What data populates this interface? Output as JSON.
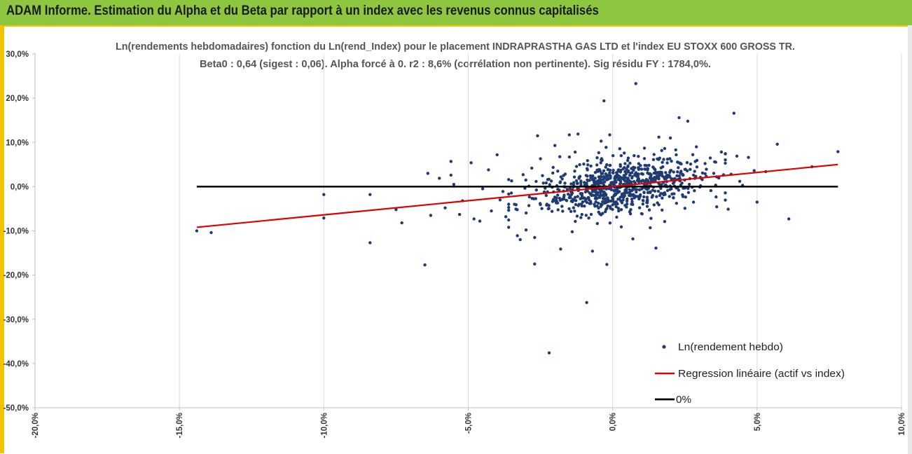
{
  "header": {
    "title": "ADAM Informe. Estimation du Alpha et du Beta par rapport à un index avec les revenus connus capitalisés"
  },
  "colors": {
    "banner": "#8dc63f",
    "frame": "#f2c300",
    "points": "#1f3b73",
    "regression": "#e00000",
    "zero_line": "#000000"
  },
  "chart_data": {
    "type": "scatter",
    "title_line1": "Ln(rendements hebdomadaires) fonction du Ln(rend_Index) pour le placement INDRAPRASTHA GAS LTD et l'index EU STOXX 600 GROSS TR.",
    "title_line2": "Beta0 : 0,64  (sigest : 0,06).  Alpha forcé à 0. r2 : 8,6% (corrélation non pertinente). Sig résidu FY : 1784,0%.",
    "x_ticks": [
      "-20,0%",
      "-15,0%",
      "-10,0%",
      "-5,0%",
      "0,0%",
      "5,0%",
      "10,0%"
    ],
    "x_tick_values": [
      -20,
      -15,
      -10,
      -5,
      0,
      5,
      10
    ],
    "y_ticks": [
      "30,0%",
      "20,0%",
      "10,0%",
      "0,0%",
      "-10,0%",
      "-20,0%",
      "-30,0%",
      "-40,0%",
      "-50,0%"
    ],
    "y_tick_values": [
      30,
      20,
      10,
      0,
      -10,
      -20,
      -30,
      -40,
      -50
    ],
    "xlim": [
      -20,
      10
    ],
    "ylim": [
      -50,
      30
    ],
    "grid": "vertical",
    "legend_position": "bottom-right",
    "series": [
      {
        "name": "Ln(rendement hebdo)",
        "kind": "points",
        "points": [
          [
            -14.4,
            -10.0
          ],
          [
            -13.9,
            -10.4
          ],
          [
            -10.0,
            -7.1
          ],
          [
            -10.0,
            -1.8
          ],
          [
            -8.4,
            -12.7
          ],
          [
            -8.4,
            -1.8
          ],
          [
            -7.5,
            -5.2
          ],
          [
            -7.3,
            -8.2
          ],
          [
            -6.5,
            -17.7
          ],
          [
            -6.4,
            3.0
          ],
          [
            -6.3,
            -6.5
          ],
          [
            -6.0,
            1.9
          ],
          [
            -5.8,
            -4.8
          ],
          [
            -5.6,
            5.7
          ],
          [
            -5.6,
            2.6
          ],
          [
            -5.5,
            0.5
          ],
          [
            -5.3,
            -6.3
          ],
          [
            -5.2,
            -3.2
          ],
          [
            -4.9,
            5.4
          ],
          [
            -4.8,
            -7.3
          ],
          [
            -4.6,
            -7.8
          ],
          [
            -4.5,
            -0.5
          ],
          [
            -4.3,
            3.8
          ],
          [
            -4.2,
            -5.5
          ],
          [
            -4.0,
            7.2
          ],
          [
            -3.9,
            -3.0
          ],
          [
            -3.8,
            -1.1
          ],
          [
            -3.7,
            -6.8
          ],
          [
            -3.6,
            -9.2
          ],
          [
            -3.5,
            1.3
          ],
          [
            -3.4,
            -4.0
          ],
          [
            -3.3,
            -11.1
          ],
          [
            -3.2,
            -12.0
          ],
          [
            -3.1,
            2.7
          ],
          [
            -3.0,
            -9.8
          ],
          [
            -2.9,
            -4.3
          ],
          [
            -2.8,
            4.2
          ],
          [
            -2.7,
            -11.5
          ],
          [
            -2.7,
            -17.5
          ],
          [
            -2.6,
            11.5
          ],
          [
            -2.5,
            6.3
          ],
          [
            -2.3,
            -2.0
          ],
          [
            -2.2,
            -37.6
          ],
          [
            -2.1,
            -5.6
          ],
          [
            -2.0,
            9.3
          ],
          [
            -1.9,
            -0.6
          ],
          [
            -1.8,
            -14.1
          ],
          [
            -1.7,
            2.5
          ],
          [
            -1.5,
            11.7
          ],
          [
            -1.4,
            -10.2
          ],
          [
            -1.3,
            7.8
          ],
          [
            -1.2,
            11.9
          ],
          [
            -1.1,
            -7.0
          ],
          [
            -1.0,
            5.1
          ],
          [
            -0.9,
            -26.2
          ],
          [
            -0.8,
            1.4
          ],
          [
            -0.7,
            -14.6
          ],
          [
            -0.6,
            3.2
          ],
          [
            -0.5,
            0.5
          ],
          [
            -0.4,
            10.3
          ],
          [
            -0.3,
            19.4
          ],
          [
            -0.2,
            -17.6
          ],
          [
            -0.1,
            11.7
          ],
          [
            0.0,
            -4.1
          ],
          [
            0.2,
            2.1
          ],
          [
            0.3,
            -9.1
          ],
          [
            0.4,
            7.6
          ],
          [
            0.5,
            -2.8
          ],
          [
            0.6,
            5.3
          ],
          [
            0.7,
            -11.8
          ],
          [
            0.8,
            23.3
          ],
          [
            0.9,
            1.1
          ],
          [
            1.0,
            -6.1
          ],
          [
            1.1,
            8.7
          ],
          [
            1.2,
            -3.2
          ],
          [
            1.3,
            -9.3
          ],
          [
            1.4,
            4.4
          ],
          [
            1.5,
            -13.9
          ],
          [
            1.6,
            11.2
          ],
          [
            1.7,
            2.9
          ],
          [
            1.8,
            -7.9
          ],
          [
            1.9,
            6.2
          ],
          [
            2.0,
            11.0
          ],
          [
            2.1,
            -2.5
          ],
          [
            2.2,
            7.2
          ],
          [
            2.3,
            15.6
          ],
          [
            2.4,
            0.8
          ],
          [
            2.5,
            -4.9
          ],
          [
            2.6,
            14.8
          ],
          [
            2.7,
            5.1
          ],
          [
            2.8,
            -3.5
          ],
          [
            2.9,
            9.0
          ],
          [
            3.1,
            1.6
          ],
          [
            3.2,
            5.2
          ],
          [
            3.4,
            -0.9
          ],
          [
            3.6,
            2.2
          ],
          [
            3.9,
            7.4
          ],
          [
            4.0,
            -5.1
          ],
          [
            4.1,
            2.8
          ],
          [
            4.2,
            16.6
          ],
          [
            4.3,
            6.9
          ],
          [
            4.5,
            0.3
          ],
          [
            4.7,
            6.6
          ],
          [
            4.9,
            3.6
          ],
          [
            5.0,
            -3.5
          ],
          [
            5.3,
            3.4
          ],
          [
            5.7,
            9.6
          ],
          [
            6.1,
            -7.3
          ],
          [
            6.9,
            4.5
          ],
          [
            7.8,
            7.9
          ],
          [
            -1.5,
            -2.5
          ],
          [
            -0.8,
            -3.8
          ],
          [
            0.1,
            0.0
          ],
          [
            0.6,
            -1.7
          ],
          [
            1.4,
            1.8
          ],
          [
            2.2,
            -0.3
          ],
          [
            -2.4,
            0.8
          ],
          [
            -1.9,
            3.5
          ],
          [
            -0.3,
            -1.2
          ],
          [
            0.9,
            3.9
          ],
          [
            1.8,
            -1.4
          ],
          [
            2.8,
            2.6
          ],
          [
            -1.1,
            0.9
          ],
          [
            0.4,
            1.5
          ],
          [
            1.2,
            -0.6
          ],
          [
            -0.6,
            -2.7
          ],
          [
            -3.6,
            1.6
          ],
          [
            -2.9,
            0.1
          ],
          [
            3.5,
            3.0
          ],
          [
            4.4,
            1.2
          ],
          [
            -0.1,
            4.8
          ],
          [
            0.3,
            -5.2
          ],
          [
            1.6,
            -4.1
          ],
          [
            -1.7,
            -1.0
          ],
          [
            2.5,
            3.9
          ],
          [
            -0.4,
            6.1
          ]
        ],
        "cloud": {
          "count": 760,
          "x_mean": 0.3,
          "x_sd": 1.45,
          "y_mean": 0.0,
          "y_sd": 2.9
        }
      },
      {
        "name": "Regression linéaire (actif vs index)",
        "kind": "line",
        "points": [
          [
            -14.4,
            -9.2
          ],
          [
            7.8,
            5.0
          ]
        ]
      },
      {
        "name": "0%",
        "kind": "line",
        "points": [
          [
            -14.4,
            0.0
          ],
          [
            7.8,
            0.0
          ]
        ]
      }
    ]
  }
}
